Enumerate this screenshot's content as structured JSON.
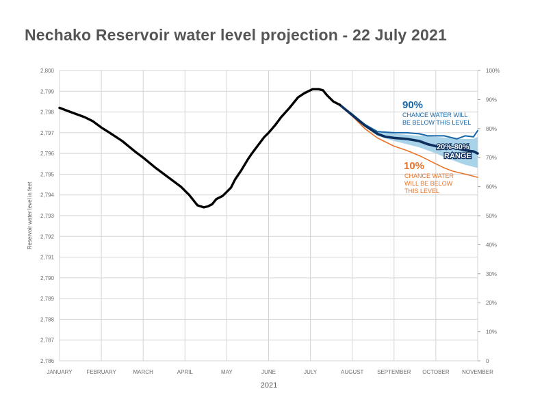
{
  "title": "Nechako Reservoir water level projection - 22 July 2021",
  "colors": {
    "observed": "#000000",
    "p90": "#1666a8",
    "p10": "#e8742a",
    "median": "#0d2f5e",
    "band": "#a9d3e8",
    "grid": "#d3d3d3"
  },
  "chart_data": {
    "type": "line",
    "title": "Nechako Reservoir water level projection - 22 July 2021",
    "xlabel": "2021",
    "ylabel": "Reservoir water level in feet",
    "x_months": [
      "JANUARY",
      "FEBRUARY",
      "MARCH",
      "APRIL",
      "MAY",
      "JUNE",
      "JULY",
      "AUGUST",
      "SEPTEMBER",
      "OCTOBER",
      "NOVEMBER"
    ],
    "xlim_months": [
      1,
      11
    ],
    "ylim": [
      2786,
      2800
    ],
    "y_ticks": [
      "2,786",
      "2,787",
      "2,788",
      "2,789",
      "2,790",
      "2,791",
      "2,792",
      "2,793",
      "2,794",
      "2,795",
      "2,796",
      "2,797",
      "2,798",
      "2,799",
      "2,800"
    ],
    "y2_ticks": [
      "0",
      "10%",
      "20%",
      "30%",
      "40%",
      "50%",
      "60%",
      "70%",
      "80%",
      "90%",
      "100%"
    ],
    "y2lim": [
      0,
      100
    ],
    "grid": true,
    "series": [
      {
        "key": "observed",
        "x": [
          1.0,
          1.2,
          1.4,
          1.6,
          1.8,
          2.0,
          2.2,
          2.5,
          2.8,
          3.0,
          3.3,
          3.6,
          3.9,
          4.1,
          4.3,
          4.45,
          4.55,
          4.65,
          4.75,
          4.9,
          5.0,
          5.1,
          5.2,
          5.35,
          5.5,
          5.6,
          5.75,
          5.9,
          6.0,
          6.15,
          6.3,
          6.5,
          6.7,
          6.85,
          6.95,
          7.05,
          7.2,
          7.3,
          7.4,
          7.5,
          7.55,
          7.7
        ],
        "y": [
          2798.2,
          2798.05,
          2797.9,
          2797.75,
          2797.55,
          2797.25,
          2797.0,
          2796.6,
          2796.1,
          2795.8,
          2795.3,
          2794.85,
          2794.4,
          2794.0,
          2793.5,
          2793.4,
          2793.45,
          2793.55,
          2793.8,
          2793.95,
          2794.15,
          2794.35,
          2794.75,
          2795.2,
          2795.7,
          2796.0,
          2796.4,
          2796.8,
          2797.0,
          2797.35,
          2797.75,
          2798.2,
          2798.7,
          2798.9,
          2799.0,
          2799.1,
          2799.1,
          2799.05,
          2798.8,
          2798.6,
          2798.5,
          2798.35
        ]
      },
      {
        "name": "90%",
        "key": "p90",
        "x": [
          7.7,
          8.0,
          8.3,
          8.6,
          9.0,
          9.3,
          9.6,
          9.8,
          10.0,
          10.2,
          10.5,
          10.7,
          10.9,
          11.0
        ],
        "y": [
          2798.35,
          2797.9,
          2797.4,
          2797.05,
          2797.0,
          2797.0,
          2796.95,
          2796.85,
          2796.85,
          2796.85,
          2796.7,
          2796.85,
          2796.8,
          2797.1
        ]
      },
      {
        "name": "20%-80% RANGE",
        "key": "median",
        "x": [
          7.7,
          8.0,
          8.3,
          8.6,
          8.8,
          9.0,
          9.3,
          9.6,
          9.8,
          10.0,
          10.3,
          10.5,
          10.7,
          10.9,
          11.0
        ],
        "y": [
          2798.35,
          2797.85,
          2797.35,
          2796.95,
          2796.8,
          2796.75,
          2796.7,
          2796.6,
          2796.45,
          2796.35,
          2796.3,
          2796.25,
          2796.15,
          2796.1,
          2796.0
        ]
      },
      {
        "name": "10%",
        "key": "p10",
        "x": [
          7.7,
          8.0,
          8.3,
          8.6,
          8.8,
          9.0,
          9.3,
          9.6,
          9.8,
          10.0,
          10.2,
          10.4,
          10.6,
          10.8,
          11.0
        ],
        "y": [
          2798.35,
          2797.8,
          2797.2,
          2796.75,
          2796.55,
          2796.35,
          2796.15,
          2795.9,
          2795.7,
          2795.5,
          2795.3,
          2795.15,
          2795.05,
          2794.95,
          2794.85
        ]
      }
    ],
    "band": {
      "name": "20%-80% RANGE",
      "x": [
        7.7,
        8.0,
        8.3,
        8.6,
        9.0,
        9.3,
        9.6,
        10.0,
        10.3,
        10.5,
        10.7,
        10.9,
        11.0
      ],
      "upper": [
        2798.35,
        2797.9,
        2797.45,
        2797.1,
        2796.95,
        2796.9,
        2796.85,
        2796.8,
        2796.75,
        2796.7,
        2796.7,
        2796.7,
        2796.8
      ],
      "lower": [
        2798.35,
        2797.8,
        2797.3,
        2796.85,
        2796.6,
        2796.45,
        2796.3,
        2796.0,
        2795.75,
        2795.6,
        2795.45,
        2795.35,
        2795.3
      ]
    },
    "annotations": {
      "p90_big": "90%",
      "p90_line1": "CHANCE WATER WILL",
      "p90_line2": "BE BELOW THIS LEVEL",
      "range_line1": "20%-80%",
      "range_line2": "RANGE",
      "p10_big": "10%",
      "p10_line1": "CHANCE WATER",
      "p10_line2": "WILL BE BELOW",
      "p10_line3": "THIS LEVEL"
    }
  }
}
